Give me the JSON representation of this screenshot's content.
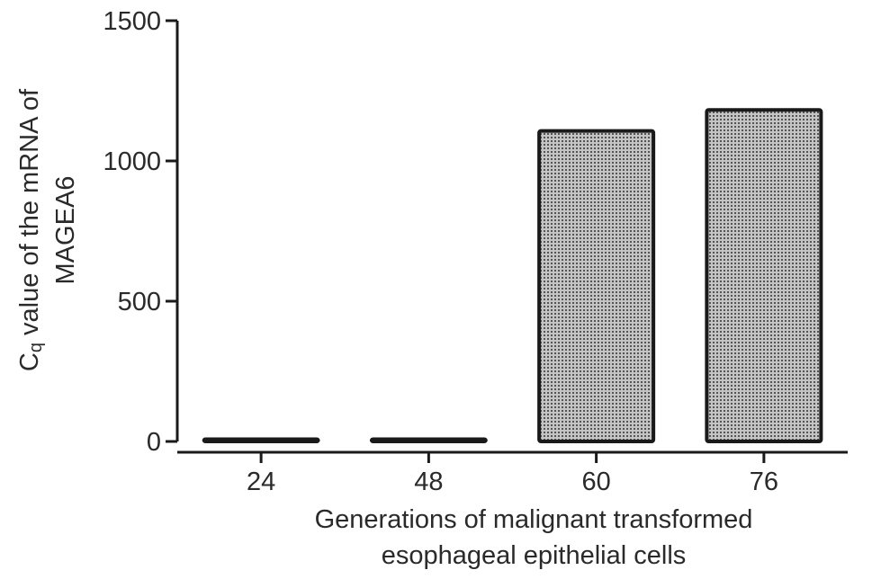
{
  "chart_data": {
    "type": "bar",
    "categories": [
      "24",
      "48",
      "60",
      "76"
    ],
    "values": [
      8,
      8,
      1107,
      1182
    ],
    "series": [
      {
        "values": [
          8,
          8,
          1107,
          1182
        ]
      }
    ],
    "title": "",
    "xlabel": [
      "Generations of malignant transformed",
      "esophageal epithelial cells"
    ],
    "ylabel": {
      "main": "C",
      "subscript": "q",
      "rest": " value of the mRNA of",
      "line2": "MAGEA6"
    },
    "ylim": [
      0,
      1500
    ],
    "yticks": [
      0,
      500,
      1000,
      1500
    ],
    "grid": false,
    "legend": "none",
    "colors": {
      "bar_fill": "#c4c4c4",
      "bar_pattern": "#555555",
      "bar_stroke": "#1a1a1a",
      "axis": "#1a1a1a",
      "text": "#2a2a2a"
    }
  }
}
